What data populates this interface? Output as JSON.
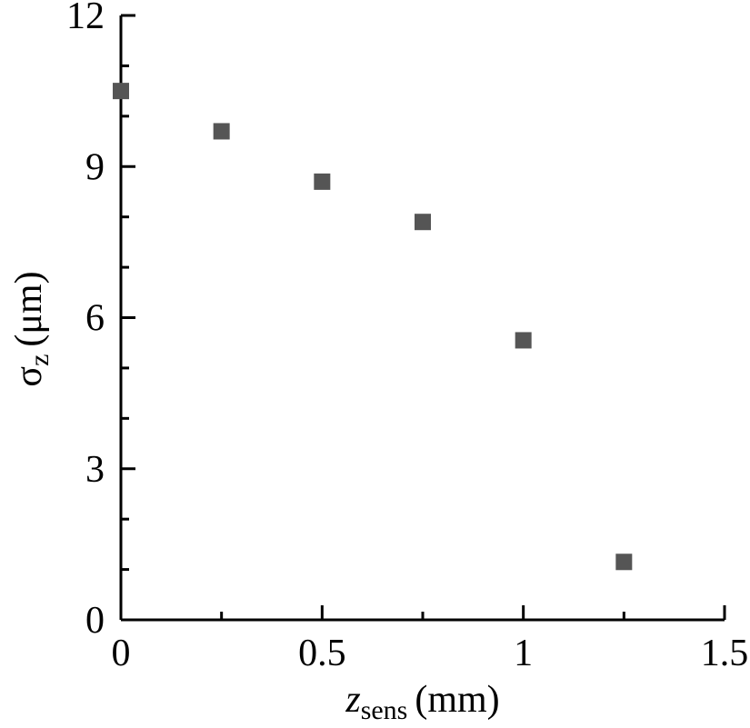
{
  "chart_data": {
    "type": "scatter",
    "xlabel": {
      "main": "z",
      "sub": "sens",
      "unit": "(mm)"
    },
    "ylabel": {
      "main": "σ",
      "sub": "z",
      "unit": "(μm)"
    },
    "xlim": [
      0,
      1.5
    ],
    "ylim": [
      0,
      12
    ],
    "x_ticks": [
      0,
      0.5,
      1,
      1.5
    ],
    "x_tick_labels": [
      "0",
      "0.5",
      "1",
      "1.5"
    ],
    "x_minor_ticks": [
      0.25,
      0.75,
      1.25
    ],
    "y_ticks": [
      0,
      3,
      6,
      9,
      12
    ],
    "y_tick_labels": [
      "0",
      "3",
      "6",
      "9",
      "12"
    ],
    "y_minor_ticks": [
      1,
      2,
      4,
      5,
      7,
      8,
      10,
      11
    ],
    "grid": false,
    "marker": "square",
    "marker_color": "#555555",
    "series": [
      {
        "x": [
          0,
          0.25,
          0.5,
          0.75,
          1.0,
          1.25
        ],
        "y": [
          10.5,
          9.7,
          8.7,
          7.9,
          5.55,
          1.15
        ]
      }
    ]
  }
}
